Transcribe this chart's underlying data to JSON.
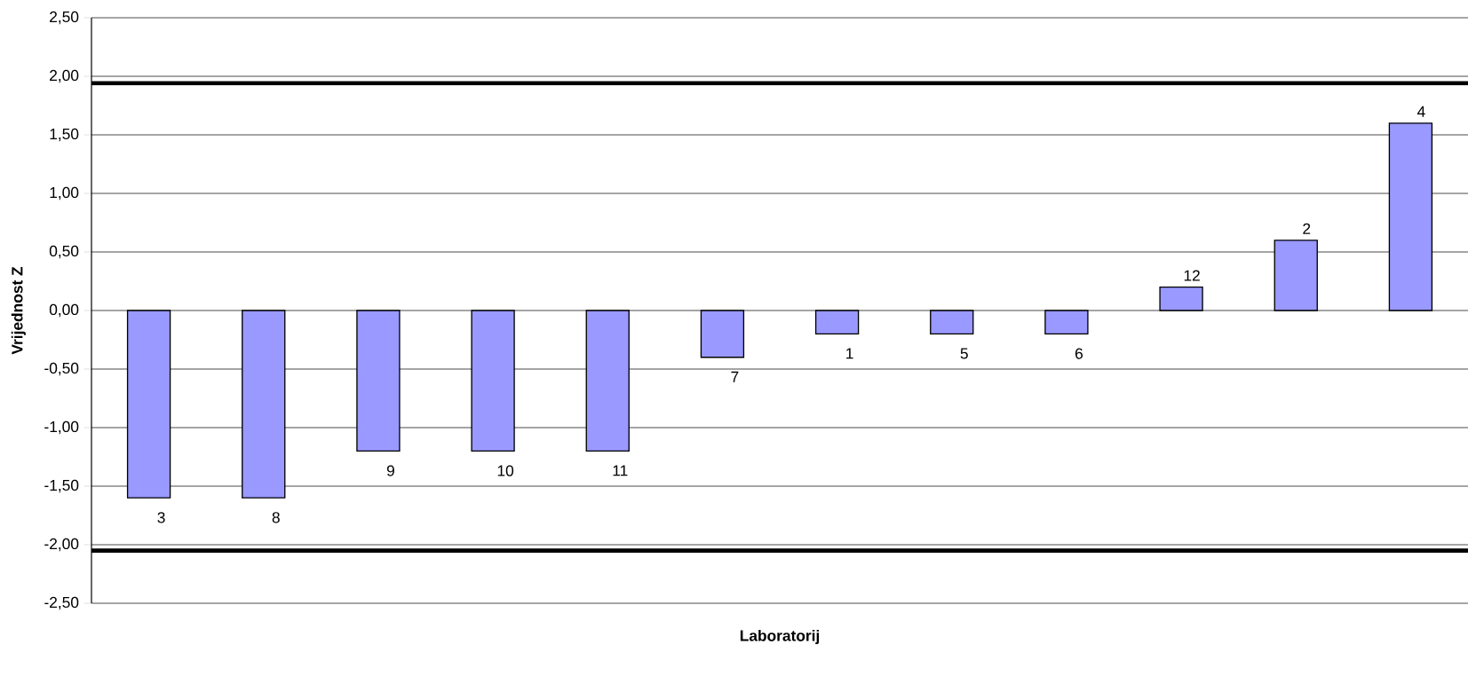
{
  "chart_data": {
    "type": "bar",
    "xlabel": "Laboratorij",
    "ylabel": "Vrijednost Z",
    "categories": [
      "3",
      "8",
      "9",
      "10",
      "11",
      "7",
      "1",
      "5",
      "6",
      "12",
      "2",
      "4"
    ],
    "values": [
      -1.6,
      -1.6,
      -1.2,
      -1.2,
      -1.2,
      -0.4,
      -0.2,
      -0.2,
      -0.2,
      0.2,
      0.6,
      1.6
    ],
    "color": "#9999ff",
    "ylim": [
      -2.5,
      2.5
    ],
    "yticks": [
      {
        "value": -2.5,
        "label": "-2,50"
      },
      {
        "value": -2.0,
        "label": "-2,00"
      },
      {
        "value": -1.5,
        "label": "-1,50"
      },
      {
        "value": -1.0,
        "label": "-1,00"
      },
      {
        "value": -0.5,
        "label": "-0,50"
      },
      {
        "value": 0.0,
        "label": "0,00"
      },
      {
        "value": 0.5,
        "label": "0,50"
      },
      {
        "value": 1.0,
        "label": "1,00"
      },
      {
        "value": 1.5,
        "label": "1,50"
      },
      {
        "value": 2.0,
        "label": "2,00"
      },
      {
        "value": 2.5,
        "label": "2,50"
      }
    ],
    "grid": "y",
    "ref_lines": [
      {
        "axis": "y",
        "value": 1.94,
        "color": "#000000"
      },
      {
        "axis": "y",
        "value": -2.05,
        "color": "#000000"
      }
    ]
  }
}
